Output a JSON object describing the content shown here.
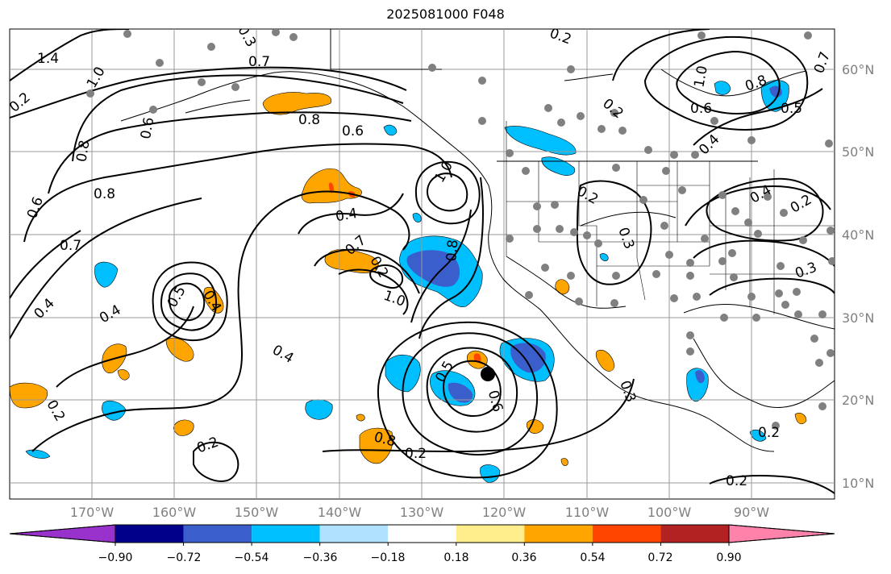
{
  "title": "2025081000 F048",
  "lat_labels": [
    "60°N",
    "50°N",
    "40°N",
    "30°N",
    "20°N",
    "10°N"
  ],
  "lon_labels": [
    "170°W",
    "160°W",
    "150°W",
    "140°W",
    "130°W",
    "120°W",
    "110°W",
    "100°W",
    "90°W"
  ],
  "contour_labels": [
    "1.4",
    "1.0",
    "0.8",
    "0.6",
    "0.8",
    "0.7",
    "0.6",
    "0.4",
    "0.4",
    "0.2",
    "0.2",
    "0.5",
    "0.4",
    "0.4",
    "0.8",
    "0.6",
    "0.4",
    "0.2",
    "1.0",
    "0.8",
    "0.5",
    "0.6",
    "0.8",
    "0.2",
    "0.3",
    "0.2",
    "0.3",
    "0.2",
    "1.0",
    "0.8",
    "0.6",
    "0.5",
    "0.2",
    "0.4",
    "0.4",
    "0.2",
    "0.3",
    "0.2",
    "0.7",
    "0.3",
    "0.2",
    "0.2",
    "1.0",
    "0.7",
    "0.7"
  ],
  "colorbar": {
    "colors": [
      "#9932CC",
      "#00008B",
      "#3A5FCD",
      "#00BFFF",
      "#B0E2FF",
      "#FFFFFF",
      "#FFEC8B",
      "#FFA500",
      "#FF4500",
      "#B22222",
      "#FF82AB"
    ],
    "ticks": [
      "−0.90",
      "−0.72",
      "−0.54",
      "−0.36",
      "−0.18",
      "0.18",
      "0.36",
      "0.54",
      "0.72",
      "0.90"
    ]
  },
  "shading_colors": {
    "orange": "#FFA500",
    "red": "#FF4500",
    "cyan": "#00BFFF",
    "blue": "#3A5FCD"
  },
  "station_marker_color": "#808080",
  "highlight_marker_color": "#000000"
}
